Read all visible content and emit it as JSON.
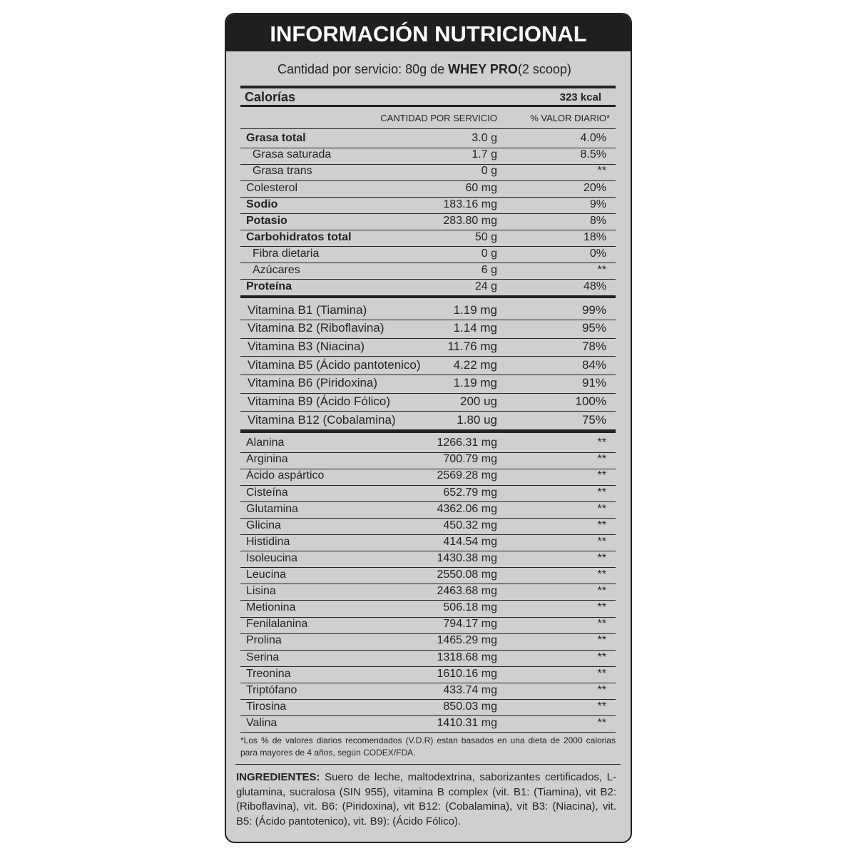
{
  "header": {
    "title": "INFORMACIÓN NUTRICIONAL"
  },
  "serving": {
    "prefix": "Cantidad por servicio: 80g de",
    "product": "WHEY PRO",
    "suffix": "(2 scoop)"
  },
  "calories": {
    "label": "Calorías",
    "value": "323 kcal"
  },
  "columns": {
    "amount": "CANTIDAD POR SERVICIO",
    "daily_value": "% VALOR DIARIO*"
  },
  "nutrients": [
    {
      "name": "Grasa total",
      "amount": "3.0 g",
      "dv": "4.0%",
      "bold": true,
      "sub": false
    },
    {
      "name": "Grasa saturada",
      "amount": "1.7 g",
      "dv": "8.5%",
      "bold": false,
      "sub": true
    },
    {
      "name": "Grasa trans",
      "amount": "0 g",
      "dv": "**",
      "bold": false,
      "sub": true
    },
    {
      "name": "Colesterol",
      "amount": "60 mg",
      "dv": "20%",
      "bold": false,
      "sub": false
    },
    {
      "name": "Sodio",
      "amount": "183.16 mg",
      "dv": "9%",
      "bold": true,
      "sub": false
    },
    {
      "name": "Potasio",
      "amount": "283.80 mg",
      "dv": "8%",
      "bold": true,
      "sub": false
    },
    {
      "name": "Carbohidratos total",
      "amount": "50 g",
      "dv": "18%",
      "bold": true,
      "sub": false
    },
    {
      "name": "Fibra dietaria",
      "amount": "0 g",
      "dv": "0%",
      "bold": false,
      "sub": true
    },
    {
      "name": "Azúcares",
      "amount": "6 g",
      "dv": "**",
      "bold": false,
      "sub": true
    },
    {
      "name": "Proteína",
      "amount": "24 g",
      "dv": "48%",
      "bold": true,
      "sub": false
    }
  ],
  "vitamins": [
    {
      "name": "Vitamina B1 (Tiamina)",
      "amount": "1.19 mg",
      "dv": "99%"
    },
    {
      "name": "Vitamina B2 (Riboflavina)",
      "amount": "1.14 mg",
      "dv": "95%"
    },
    {
      "name": "Vitamina B3 (Niacina)",
      "amount": "11.76 mg",
      "dv": "78%"
    },
    {
      "name": "Vitamina B5 (Ácido pantotenico)",
      "amount": "4.22 mg",
      "dv": "84%"
    },
    {
      "name": "Vitamina B6 (Piridoxina)",
      "amount": "1.19 mg",
      "dv": "91%"
    },
    {
      "name": "Vitamina B9 (Ácido Fólico)",
      "amount": "200 ug",
      "dv": "100%"
    },
    {
      "name": "Vitamina B12 (Cobalamina)",
      "amount": "1.80 ug",
      "dv": "75%"
    }
  ],
  "amino_acids": [
    {
      "name": "Alanina",
      "amount": "1266.31 mg",
      "dv": "**"
    },
    {
      "name": "Arginina",
      "amount": "700.79 mg",
      "dv": "**"
    },
    {
      "name": "Ácido aspártico",
      "amount": "2569.28 mg",
      "dv": "**"
    },
    {
      "name": "Cisteína",
      "amount": "652.79 mg",
      "dv": "**"
    },
    {
      "name": "Glutamina",
      "amount": "4362.06 mg",
      "dv": "**"
    },
    {
      "name": "Glicina",
      "amount": "450.32 mg",
      "dv": "**"
    },
    {
      "name": "Histidina",
      "amount": "414.54 mg",
      "dv": "**"
    },
    {
      "name": "Isoleucina",
      "amount": "1430.38 mg",
      "dv": "**"
    },
    {
      "name": "Leucina",
      "amount": "2550.08 mg",
      "dv": "**"
    },
    {
      "name": "Lisina",
      "amount": "2463.68 mg",
      "dv": "**"
    },
    {
      "name": "Metionina",
      "amount": "506.18 mg",
      "dv": "**"
    },
    {
      "name": "Fenilalanina",
      "amount": "794.17 mg",
      "dv": "**"
    },
    {
      "name": "Prolina",
      "amount": "1465.29 mg",
      "dv": "**"
    },
    {
      "name": "Serina",
      "amount": "1318.68 mg",
      "dv": "**"
    },
    {
      "name": "Treonina",
      "amount": "1610.16 mg",
      "dv": "**"
    },
    {
      "name": "Triptófano",
      "amount": "433.74 mg",
      "dv": "**"
    },
    {
      "name": "Tirosina",
      "amount": "850.03 mg",
      "dv": "**"
    },
    {
      "name": "Valina",
      "amount": "1410.31 mg",
      "dv": "**"
    }
  ],
  "footnote": "*Los % de valores diarios recomendados (V.D.R) estan basados en una dieta de 2000 calorias para mayores de 4 años, según CODEX/FDA.",
  "ingredients": {
    "label": "INGREDIENTES:",
    "text": "Suero de leche, maltodextrina, saborizantes certificados, L-glutamina, sucralosa (SIN 955), vitamina B complex (vit. B1: (Tiamina), vit B2: (Riboflavina), vit. B6: (Piridoxina), vit B12: (Cobalamina), vit B3: (Niacina), vit. B5: (Ácido pantotenico), vit. B9): (Ácido Fólico)."
  }
}
